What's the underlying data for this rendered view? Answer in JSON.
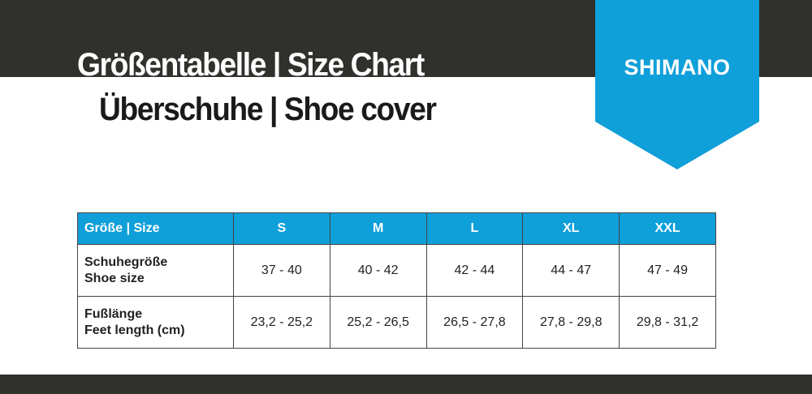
{
  "header": {
    "title_line1": "Größentabelle | Size Chart",
    "title_line2": "Überschuhe | Shoe cover",
    "brand": "SHIMANO",
    "colors": {
      "dark_band": "#30302c",
      "brand_blue": "#0f9fd9"
    }
  },
  "table": {
    "header_label": "Größe | Size",
    "sizes": [
      "S",
      "M",
      "L",
      "XL",
      "XXL"
    ],
    "rows": [
      {
        "label_de": "Schuhegröße",
        "label_en": "Shoe size",
        "values": [
          "37 - 40",
          "40 - 42",
          "42 - 44",
          "44 - 47",
          "47 - 49"
        ]
      },
      {
        "label_de": "Fußlänge",
        "label_en": "Feet length (cm)",
        "values": [
          "23,2 - 25,2",
          "25,2 - 26,5",
          "26,5 - 27,8",
          "27,8 - 29,8",
          "29,8 - 31,2"
        ]
      }
    ]
  }
}
